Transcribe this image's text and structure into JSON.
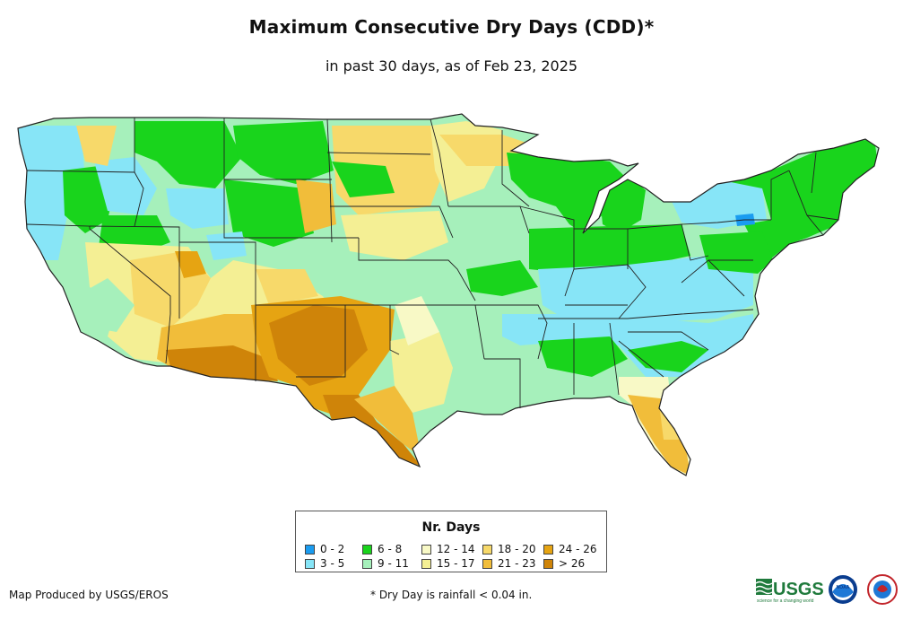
{
  "header": {
    "title": "Maximum Consecutive Dry Days (CDD)*",
    "subtitle": "in past 30 days, as of Feb 23, 2025"
  },
  "legend": {
    "title": "Nr. Days",
    "items": [
      {
        "label": "0 - 2",
        "color": "#1a9cf0"
      },
      {
        "label": "3 - 5",
        "color": "#87e5f7"
      },
      {
        "label": "6 - 8",
        "color": "#19d41c"
      },
      {
        "label": "9 - 11",
        "color": "#a6f0bb"
      },
      {
        "label": "12 - 14",
        "color": "#f8f9c6"
      },
      {
        "label": "15 - 17",
        "color": "#f4ef94"
      },
      {
        "label": "18 - 20",
        "color": "#f7d96a"
      },
      {
        "label": "21 - 23",
        "color": "#f1bd3a"
      },
      {
        "label": "24 - 26",
        "color": "#e6a412"
      },
      {
        "label": "> 26",
        "color": "#cf8409"
      }
    ]
  },
  "footer": {
    "credit": "Map Produced by USGS/EROS",
    "note": "* Dry Day is rainfall < 0.04 in."
  },
  "logos": {
    "usgs_text": "USGS",
    "usgs_tagline": "science for a changing world",
    "noaa_text": "NOAA"
  }
}
